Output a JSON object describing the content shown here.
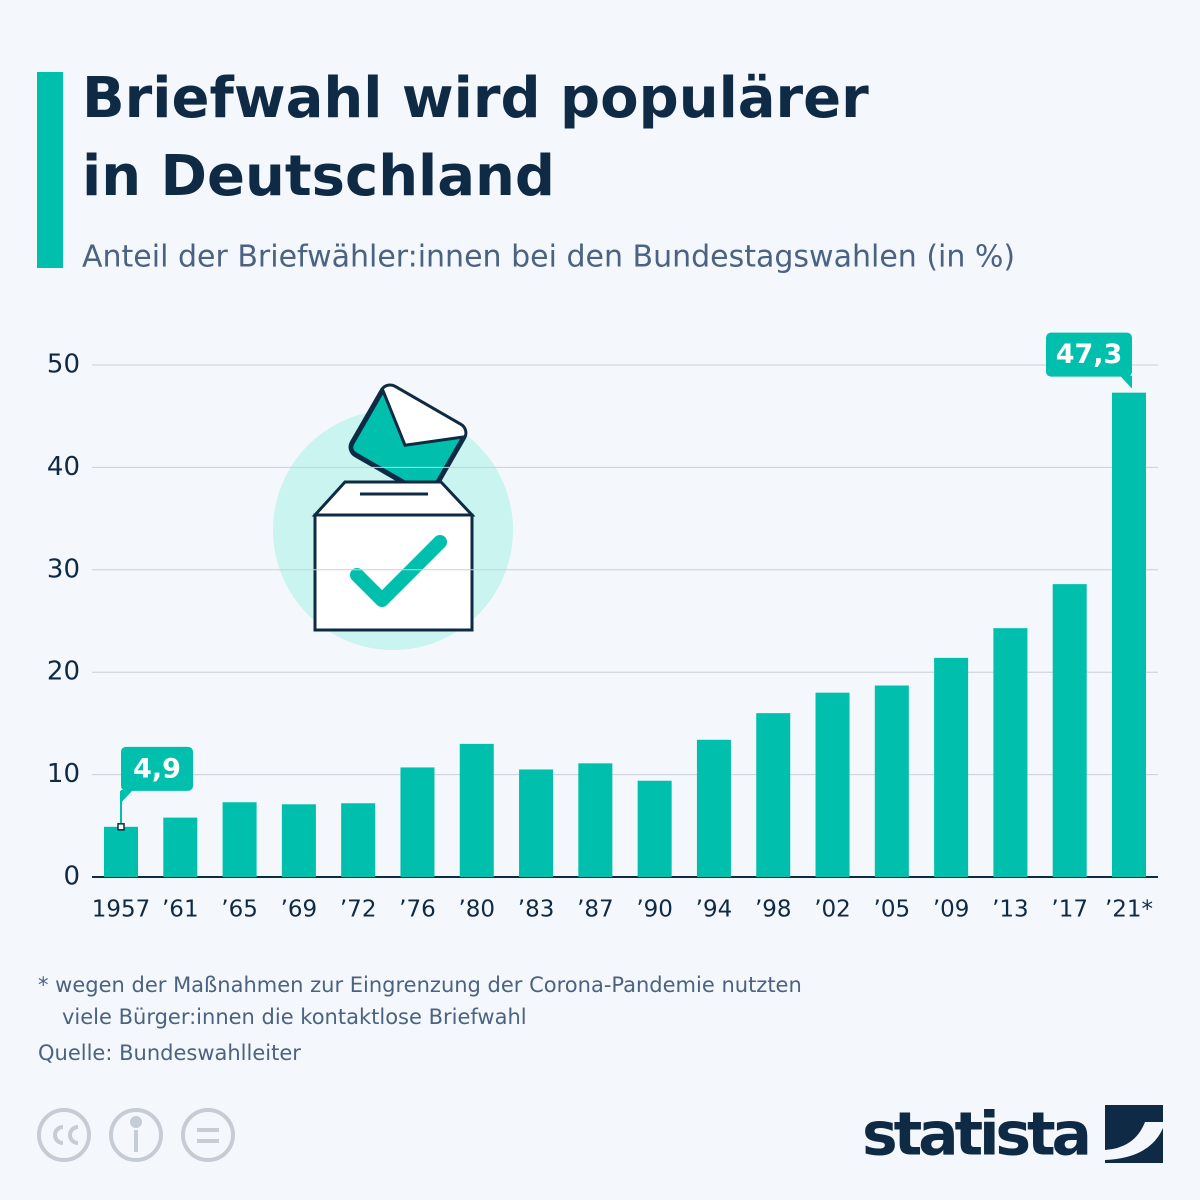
{
  "chart_data": {
    "type": "bar",
    "title": [
      "Briefwahl wird populärer",
      "in Deutschland"
    ],
    "subtitle": "Anteil der Briefwähler:innen bei den Bundestagswahlen (in %)",
    "categories": [
      "1957",
      "’61",
      "’65",
      "’69",
      "’72",
      "’76",
      "’80",
      "’83",
      "’87",
      "’90",
      "’94",
      "’98",
      "’02",
      "’05",
      "’09",
      "’13",
      "’17",
      "’21*"
    ],
    "values": [
      4.9,
      5.8,
      7.3,
      7.1,
      7.2,
      10.7,
      13.0,
      10.5,
      11.1,
      9.4,
      13.4,
      16.0,
      18.0,
      18.7,
      21.4,
      24.3,
      28.6,
      47.3
    ],
    "value_labels": [
      "4,9",
      null,
      null,
      null,
      null,
      null,
      null,
      null,
      null,
      null,
      null,
      null,
      null,
      null,
      null,
      null,
      null,
      "47,3"
    ],
    "color": "#00bfad",
    "ylim": [
      0,
      50
    ],
    "yticks": [
      0,
      10,
      20,
      30,
      40,
      50
    ],
    "grid": true,
    "footnote": [
      "* wegen der Maßnahmen zur Eingrenzung der Corona-Pandemie nutzten",
      "viele Bürger:innen die kontaktlose Briefwahl"
    ],
    "source": "Quelle: Bundeswahlleiter",
    "brand": "statista"
  }
}
